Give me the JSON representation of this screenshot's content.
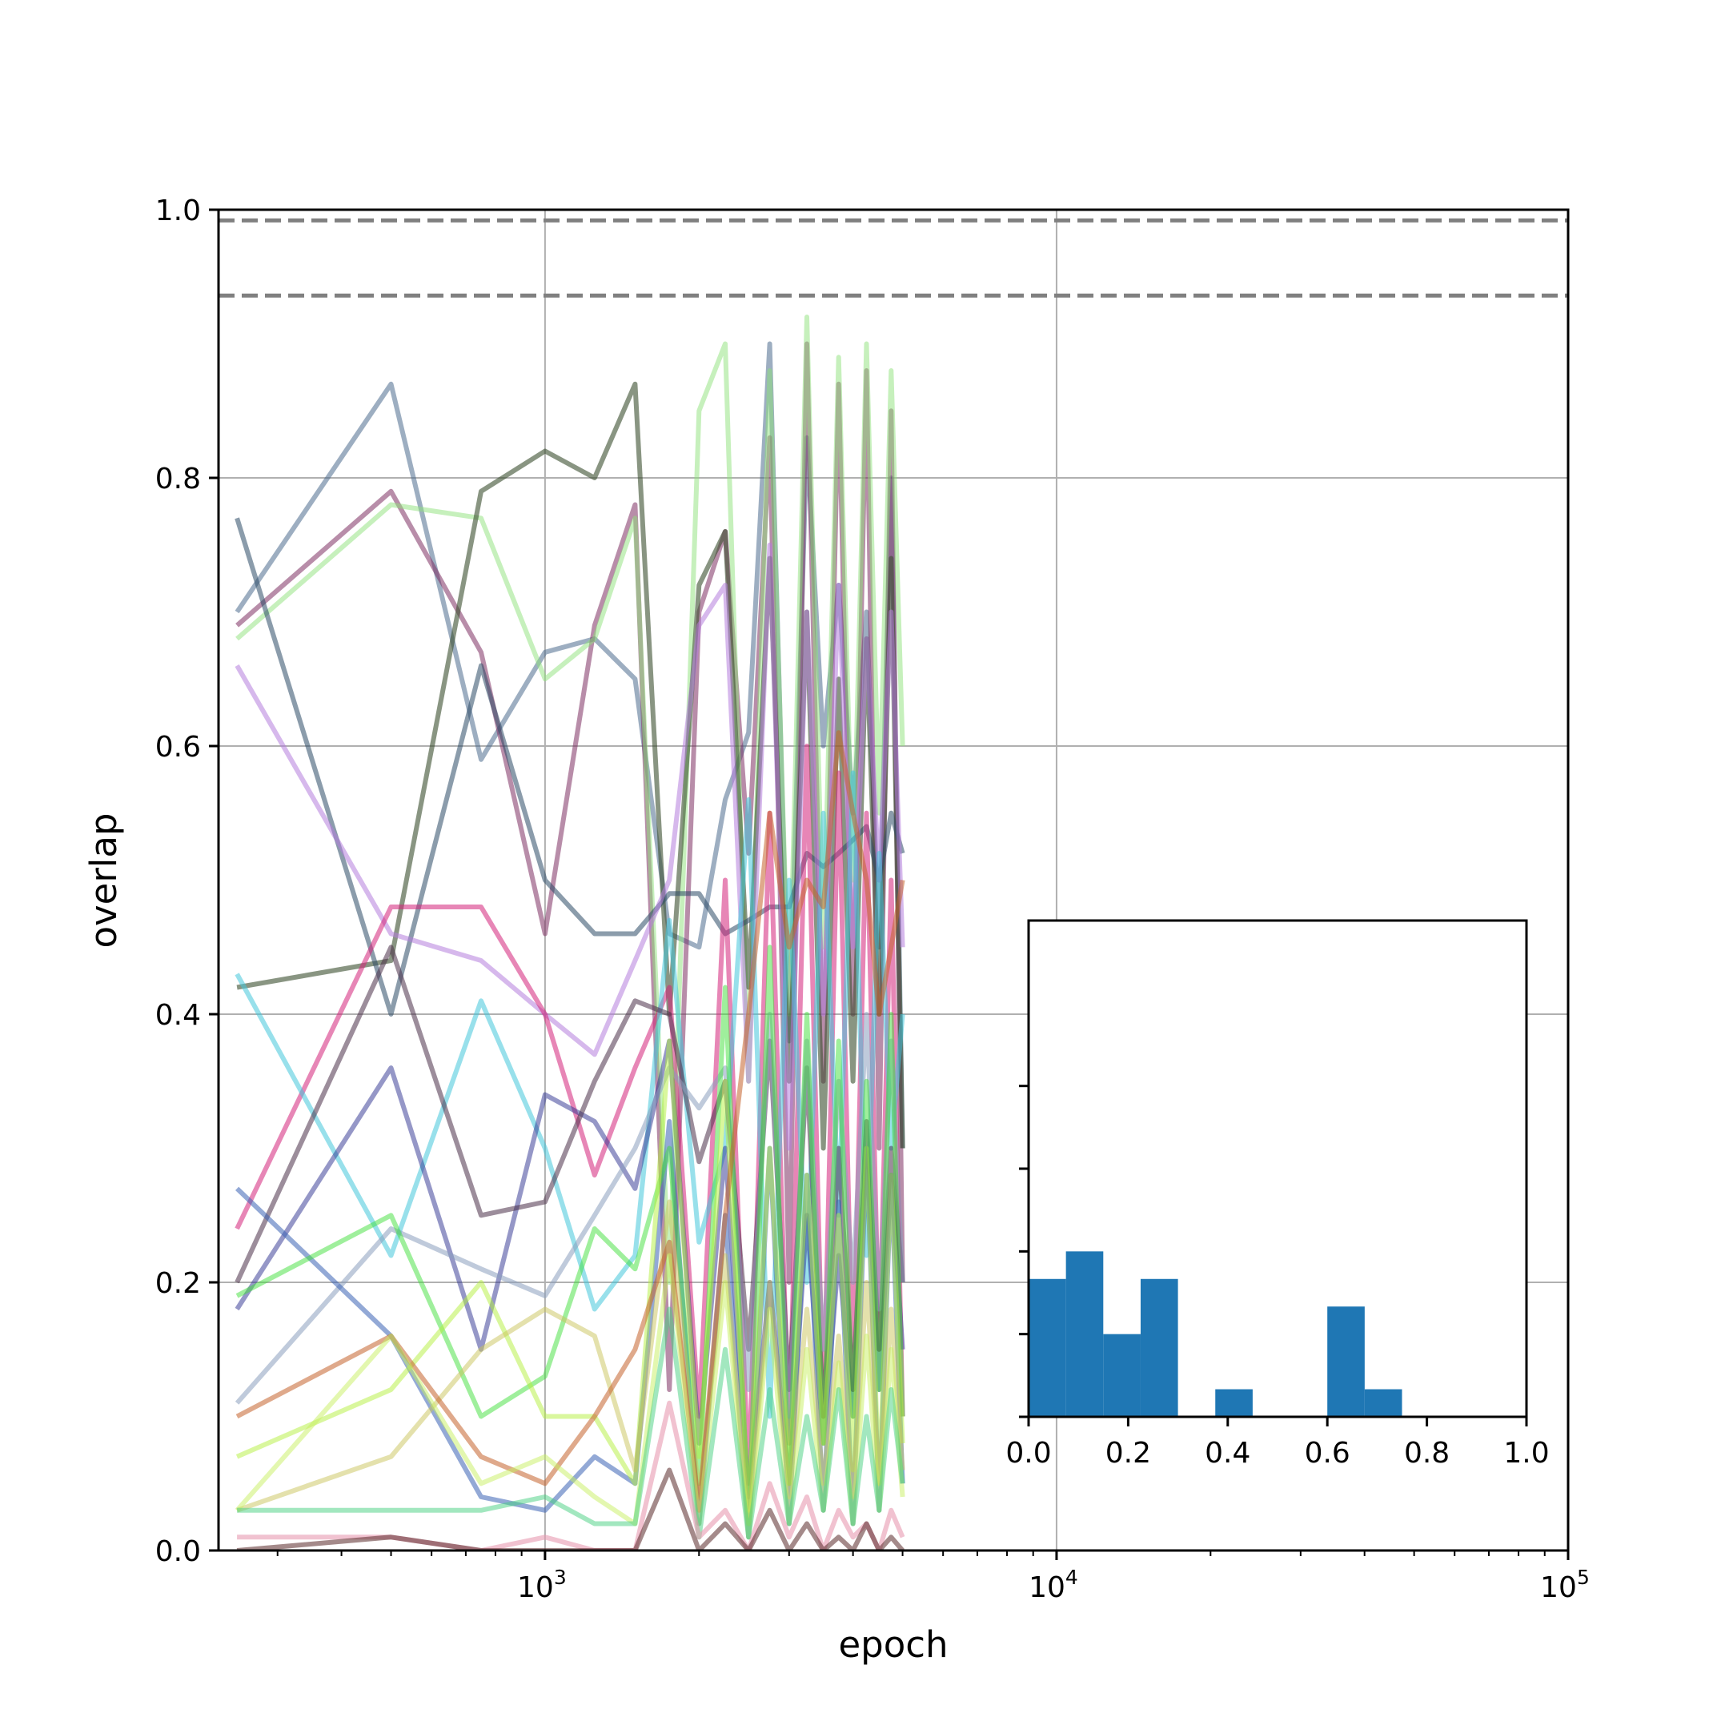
{
  "chart_data": [
    {
      "type": "line",
      "xlabel": "epoch",
      "ylabel": "overlap",
      "x_scale": "log",
      "xlim": [
        230,
        100000
      ],
      "ylim": [
        0.0,
        1.0
      ],
      "grid": true,
      "x_ticks": [
        1000,
        10000,
        100000
      ],
      "x_tick_labels": [
        {
          "base": "10",
          "exp": "3"
        },
        {
          "base": "10",
          "exp": "4"
        },
        {
          "base": "10",
          "exp": "5"
        }
      ],
      "y_ticks": [
        0.0,
        0.2,
        0.4,
        0.6,
        0.8,
        1.0
      ],
      "y_tick_labels": [
        "0.0",
        "0.2",
        "0.4",
        "0.6",
        "0.8",
        "1.0"
      ],
      "reference_lines": [
        {
          "y": 0.992,
          "style": "dashed",
          "color": "#808080"
        },
        {
          "y": 0.936,
          "style": "dashed",
          "color": "#808080"
        }
      ],
      "x": [
        250,
        500,
        750,
        1000,
        1250,
        1500,
        1750,
        2000,
        2250,
        2500,
        2750,
        3000,
        3250,
        3500,
        3750,
        4000,
        4250,
        4500,
        4750,
        5000
      ],
      "series": [
        {
          "color": "#4c6c8e",
          "alpha": 0.55,
          "values": [
            0.7,
            0.87,
            0.59,
            0.67,
            0.68,
            0.65,
            0.46,
            0.45,
            0.56,
            0.61,
            0.9,
            0.38,
            0.83,
            0.6,
            0.72,
            0.55,
            0.7,
            0.45,
            0.8,
            0.3
          ]
        },
        {
          "color": "#7e2f63",
          "alpha": 0.55,
          "values": [
            0.69,
            0.79,
            0.67,
            0.46,
            0.69,
            0.78,
            0.12,
            0.7,
            0.76,
            0.52,
            0.83,
            0.2,
            0.9,
            0.35,
            0.87,
            0.4,
            0.88,
            0.3,
            0.85,
            0.2
          ]
        },
        {
          "color": "#8ee27a",
          "alpha": 0.5,
          "values": [
            0.68,
            0.78,
            0.77,
            0.65,
            0.68,
            0.77,
            0.2,
            0.85,
            0.9,
            0.35,
            0.88,
            0.4,
            0.92,
            0.45,
            0.89,
            0.5,
            0.9,
            0.55,
            0.88,
            0.6
          ]
        },
        {
          "color": "#3b4f2f",
          "alpha": 0.6,
          "values": [
            0.42,
            0.44,
            0.79,
            0.82,
            0.8,
            0.87,
            0.4,
            0.72,
            0.76,
            0.42,
            0.74,
            0.35,
            0.7,
            0.3,
            0.65,
            0.35,
            0.68,
            0.4,
            0.74,
            0.3
          ]
        },
        {
          "color": "#2b4a66",
          "alpha": 0.55,
          "values": [
            0.77,
            0.4,
            0.66,
            0.5,
            0.46,
            0.46,
            0.49,
            0.49,
            0.46,
            0.47,
            0.48,
            0.48,
            0.52,
            0.51,
            0.52,
            0.53,
            0.54,
            0.5,
            0.55,
            0.52
          ]
        },
        {
          "color": "#b57edc",
          "alpha": 0.55,
          "values": [
            0.66,
            0.46,
            0.44,
            0.4,
            0.37,
            0.44,
            0.5,
            0.69,
            0.72,
            0.35,
            0.75,
            0.3,
            0.7,
            0.4,
            0.72,
            0.45,
            0.68,
            0.5,
            0.7,
            0.45
          ]
        },
        {
          "color": "#d4237a",
          "alpha": 0.55,
          "values": [
            0.24,
            0.48,
            0.48,
            0.4,
            0.28,
            0.36,
            0.42,
            0.1,
            0.5,
            0.05,
            0.55,
            0.08,
            0.6,
            0.1,
            0.58,
            0.12,
            0.55,
            0.15,
            0.5,
            0.1
          ]
        },
        {
          "color": "#43c6db",
          "alpha": 0.55,
          "values": [
            0.43,
            0.22,
            0.41,
            0.3,
            0.18,
            0.22,
            0.47,
            0.23,
            0.3,
            0.56,
            0.1,
            0.5,
            0.2,
            0.55,
            0.25,
            0.58,
            0.22,
            0.52,
            0.3,
            0.4
          ]
        },
        {
          "color": "#2c2f8f",
          "alpha": 0.5,
          "values": [
            0.18,
            0.36,
            0.15,
            0.34,
            0.32,
            0.27,
            0.38,
            0.08,
            0.3,
            0.04,
            0.2,
            0.05,
            0.25,
            0.08,
            0.22,
            0.1,
            0.3,
            0.12,
            0.28,
            0.15
          ]
        },
        {
          "color": "#4a2f48",
          "alpha": 0.55,
          "values": [
            0.2,
            0.45,
            0.25,
            0.26,
            0.35,
            0.41,
            0.4,
            0.29,
            0.35,
            0.15,
            0.38,
            0.12,
            0.36,
            0.1,
            0.3,
            0.12,
            0.32,
            0.15,
            0.3,
            0.2
          ]
        },
        {
          "color": "#8a9fbe",
          "alpha": 0.55,
          "values": [
            0.11,
            0.24,
            0.21,
            0.19,
            0.25,
            0.3,
            0.36,
            0.33,
            0.36,
            0.12,
            0.4,
            0.1,
            0.38,
            0.15,
            0.35,
            0.2,
            0.4,
            0.18,
            0.38,
            0.2
          ]
        },
        {
          "color": "#3a62b5",
          "alpha": 0.55,
          "values": [
            0.27,
            0.16,
            0.04,
            0.03,
            0.07,
            0.05,
            0.32,
            0.02,
            0.25,
            0.01,
            0.3,
            0.02,
            0.28,
            0.03,
            0.26,
            0.02,
            0.3,
            0.03,
            0.28,
            0.05
          ]
        },
        {
          "color": "#3fe03a",
          "alpha": 0.5,
          "values": [
            0.19,
            0.25,
            0.1,
            0.13,
            0.24,
            0.21,
            0.3,
            0.05,
            0.42,
            0.02,
            0.45,
            0.05,
            0.4,
            0.08,
            0.38,
            0.1,
            0.35,
            0.12,
            0.4,
            0.1
          ]
        },
        {
          "color": "#b4f03c",
          "alpha": 0.5,
          "values": [
            0.07,
            0.12,
            0.2,
            0.1,
            0.1,
            0.05,
            0.38,
            0.07,
            0.35,
            0.03,
            0.3,
            0.05,
            0.28,
            0.08,
            0.25,
            0.06,
            0.3,
            0.05,
            0.28,
            0.08
          ]
        },
        {
          "color": "#c9c45a",
          "alpha": 0.5,
          "values": [
            0.03,
            0.07,
            0.15,
            0.18,
            0.16,
            0.06,
            0.26,
            0.04,
            0.22,
            0.02,
            0.2,
            0.04,
            0.18,
            0.05,
            0.16,
            0.04,
            0.2,
            0.05,
            0.18,
            0.06
          ]
        },
        {
          "color": "#c5632b",
          "alpha": 0.55,
          "values": [
            0.1,
            0.16,
            0.07,
            0.05,
            0.1,
            0.15,
            0.23,
            0.03,
            0.25,
            0.4,
            0.55,
            0.45,
            0.5,
            0.48,
            0.61,
            0.55,
            0.5,
            0.4,
            0.45,
            0.5
          ]
        },
        {
          "color": "#c8f060",
          "alpha": 0.5,
          "values": [
            0.03,
            0.16,
            0.05,
            0.07,
            0.04,
            0.02,
            0.22,
            0.02,
            0.2,
            0.01,
            0.18,
            0.02,
            0.15,
            0.03,
            0.14,
            0.02,
            0.16,
            0.03,
            0.15,
            0.04
          ]
        },
        {
          "color": "#46d080",
          "alpha": 0.5,
          "values": [
            0.03,
            0.03,
            0.03,
            0.04,
            0.02,
            0.02,
            0.18,
            0.01,
            0.15,
            0.01,
            0.12,
            0.02,
            0.1,
            0.03,
            0.12,
            0.02,
            0.1,
            0.03,
            0.12,
            0.05
          ]
        },
        {
          "color": "#e89ab0",
          "alpha": 0.6,
          "values": [
            0.01,
            0.01,
            0.0,
            0.01,
            0.0,
            0.0,
            0.11,
            0.01,
            0.03,
            0.0,
            0.05,
            0.01,
            0.04,
            0.0,
            0.03,
            0.01,
            0.02,
            0.0,
            0.03,
            0.01
          ]
        },
        {
          "color": "#5a2a2a",
          "alpha": 0.55,
          "values": [
            0.0,
            0.01,
            0.0,
            0.0,
            0.0,
            0.0,
            0.06,
            0.0,
            0.02,
            0.0,
            0.03,
            0.0,
            0.02,
            0.0,
            0.01,
            0.0,
            0.02,
            0.0,
            0.01,
            0.0
          ]
        }
      ]
    },
    {
      "type": "bar",
      "subtype": "histogram",
      "xlim": [
        0.0,
        1.0
      ],
      "x_ticks": [
        0.0,
        0.2,
        0.4,
        0.6,
        0.8,
        1.0
      ],
      "x_tick_labels": [
        "0.0",
        "0.2",
        "0.4",
        "0.6",
        "0.8",
        "1.0"
      ],
      "y_tick_count": 5,
      "color": "#1f77b4",
      "bin_edges": [
        0.0,
        0.075,
        0.15,
        0.225,
        0.3,
        0.375,
        0.45,
        0.525,
        0.6,
        0.675,
        0.75,
        0.825,
        0.9,
        0.975
      ],
      "counts": [
        5,
        6,
        3,
        5,
        0,
        1,
        0,
        0,
        4,
        1,
        0,
        0,
        0
      ]
    }
  ]
}
